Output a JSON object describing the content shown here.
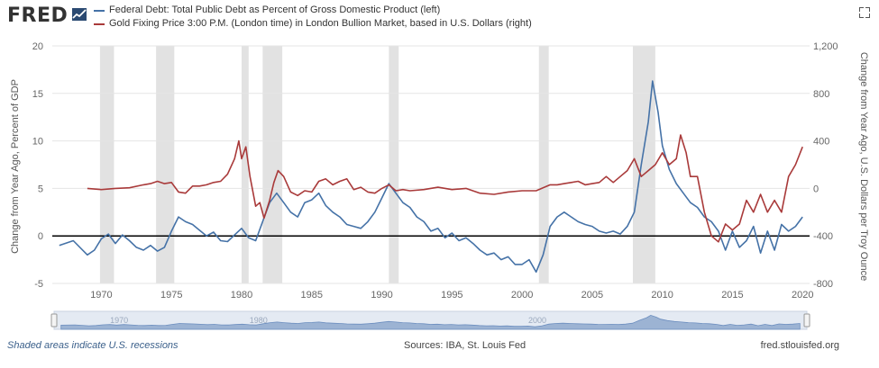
{
  "brand": {
    "logo_text": "FRED"
  },
  "chart_data": {
    "type": "line",
    "title": "",
    "xlabel": "",
    "ylabel_left": "Change from Year Ago, Percent of GDP",
    "ylabel_right": "Change from Year Ago, U.S. Dollars per Troy Ounce",
    "xlim": [
      1966.5,
      2020.5
    ],
    "ylim_left": [
      -5,
      20
    ],
    "ylim_right": [
      -800,
      1200
    ],
    "x_ticks": [
      "1970",
      "1975",
      "1980",
      "1985",
      "1990",
      "1995",
      "2000",
      "2005",
      "2010",
      "2015",
      "2020"
    ],
    "y_ticks_left": [
      "20",
      "15",
      "10",
      "5",
      "0",
      "-5"
    ],
    "y_ticks_right": [
      "1,200",
      "800",
      "400",
      "0",
      "-400",
      "-800"
    ],
    "grid": true,
    "zero_line": true,
    "legend_placement": "top-left",
    "recessions": [
      [
        1969.9,
        1970.9
      ],
      [
        1973.9,
        1975.2
      ],
      [
        1980.0,
        1980.5
      ],
      [
        1981.5,
        1982.9
      ],
      [
        1990.5,
        1991.2
      ],
      [
        2001.2,
        2001.9
      ],
      [
        2007.9,
        2009.5
      ]
    ],
    "series": [
      {
        "name": "Federal Debt: Total Public Debt as Percent of Gross Domestic Product (left)",
        "axis": "left",
        "color": "#4572a7",
        "x": [
          1967,
          1968,
          1969,
          1969.5,
          1970,
          1970.5,
          1971,
          1971.5,
          1972,
          1972.5,
          1973,
          1973.5,
          1974,
          1974.5,
          1975,
          1975.5,
          1976,
          1976.5,
          1977,
          1977.5,
          1978,
          1978.5,
          1979,
          1979.5,
          1980,
          1980.5,
          1981,
          1981.5,
          1982,
          1982.5,
          1983,
          1983.5,
          1984,
          1984.5,
          1985,
          1985.5,
          1986,
          1986.5,
          1987,
          1987.5,
          1988,
          1988.5,
          1989,
          1989.5,
          1990,
          1990.5,
          1991,
          1991.5,
          1992,
          1992.5,
          1993,
          1993.5,
          1994,
          1994.5,
          1995,
          1995.5,
          1996,
          1996.5,
          1997,
          1997.5,
          1998,
          1998.5,
          1999,
          1999.5,
          2000,
          2000.5,
          2001,
          2001.5,
          2002,
          2002.5,
          2003,
          2003.5,
          2004,
          2004.5,
          2005,
          2005.5,
          2006,
          2006.5,
          2007,
          2007.5,
          2008,
          2008.5,
          2009,
          2009.3,
          2009.7,
          2010,
          2010.5,
          2011,
          2011.5,
          2012,
          2012.5,
          2013,
          2013.5,
          2014,
          2014.5,
          2015,
          2015.5,
          2016,
          2016.5,
          2017,
          2017.5,
          2018,
          2018.5,
          2019,
          2019.5,
          2020
        ],
        "values": [
          -1,
          -0.5,
          -2,
          -1.5,
          -0.3,
          0.2,
          -0.8,
          0.1,
          -0.5,
          -1.2,
          -1.5,
          -1.0,
          -1.6,
          -1.2,
          0.5,
          2.0,
          1.5,
          1.2,
          0.6,
          0,
          0.4,
          -0.5,
          -0.6,
          0.1,
          0.8,
          -0.2,
          -0.5,
          1.5,
          3.5,
          4.5,
          3.5,
          2.5,
          2.0,
          3.5,
          3.8,
          4.5,
          3.2,
          2.5,
          2.0,
          1.2,
          1.0,
          0.8,
          1.5,
          2.5,
          4.0,
          5.5,
          4.5,
          3.5,
          3.0,
          2.0,
          1.5,
          0.5,
          0.8,
          -0.2,
          0.3,
          -0.5,
          -0.2,
          -0.8,
          -1.5,
          -2.0,
          -1.8,
          -2.5,
          -2.2,
          -3.0,
          -3.0,
          -2.5,
          -3.8,
          -2.0,
          1.0,
          2.0,
          2.5,
          2.0,
          1.5,
          1.2,
          1.0,
          0.5,
          0.3,
          0.5,
          0.2,
          1.0,
          2.5,
          7.5,
          12.0,
          16.3,
          13.0,
          9.5,
          7.0,
          5.5,
          4.5,
          3.5,
          3.0,
          2.0,
          1.5,
          0.5,
          -1.5,
          0.5,
          -1.2,
          -0.5,
          1.0,
          -1.8,
          0.5,
          -1.5,
          1.2,
          0.5,
          1.0,
          2.0
        ]
      },
      {
        "name": "Gold Fixing Price 3:00 P.M. (London time) in London Bullion Market, based in U.S. Dollars (right)",
        "axis": "right",
        "color": "#a93a3a",
        "x": [
          1969,
          1970,
          1971,
          1972,
          1973,
          1973.5,
          1974,
          1974.5,
          1975,
          1975.5,
          1976,
          1976.5,
          1977,
          1977.5,
          1978,
          1978.5,
          1979,
          1979.5,
          1979.8,
          1980,
          1980.3,
          1980.6,
          1981,
          1981.3,
          1981.6,
          1982,
          1982.3,
          1982.6,
          1983,
          1983.5,
          1984,
          1984.5,
          1985,
          1985.5,
          1986,
          1986.5,
          1987,
          1987.5,
          1988,
          1988.5,
          1989,
          1989.5,
          1990,
          1990.5,
          1991,
          1991.5,
          1992,
          1993,
          1994,
          1995,
          1996,
          1997,
          1998,
          1999,
          2000,
          2001,
          2002,
          2002.5,
          2003,
          2003.5,
          2004,
          2004.5,
          2005,
          2005.5,
          2006,
          2006.5,
          2007,
          2007.5,
          2008,
          2008.5,
          2009,
          2009.5,
          2010,
          2010.5,
          2011,
          2011.3,
          2011.7,
          2012,
          2012.5,
          2013,
          2013.5,
          2014,
          2014.5,
          2015,
          2015.5,
          2016,
          2016.5,
          2017,
          2017.5,
          2018,
          2018.5,
          2019,
          2019.5,
          2020
        ],
        "values": [
          0,
          -10,
          0,
          5,
          30,
          40,
          60,
          40,
          50,
          -30,
          -40,
          20,
          20,
          30,
          50,
          60,
          120,
          250,
          400,
          250,
          350,
          100,
          -150,
          -120,
          -250,
          -100,
          50,
          150,
          100,
          -30,
          -60,
          -20,
          -30,
          60,
          80,
          30,
          60,
          80,
          -10,
          10,
          -30,
          -40,
          0,
          30,
          -20,
          -10,
          -20,
          -10,
          10,
          -10,
          0,
          -40,
          -50,
          -30,
          -20,
          -20,
          30,
          30,
          40,
          50,
          60,
          30,
          40,
          50,
          100,
          50,
          100,
          150,
          250,
          100,
          150,
          200,
          300,
          200,
          250,
          450,
          300,
          100,
          100,
          -200,
          -400,
          -450,
          -300,
          -350,
          -300,
          -100,
          -200,
          -50,
          -200,
          -100,
          -200,
          100,
          200,
          350
        ]
      }
    ]
  },
  "footer": {
    "note": "Shaded areas indicate U.S. recessions",
    "source": "Sources: IBA, St. Louis Fed",
    "url": "fred.stlouisfed.org"
  },
  "navigator": {
    "labels": [
      "1970",
      "1980",
      "2000"
    ]
  },
  "colors": {
    "grid": "#e5e5e5",
    "recession": "#e2e2e2",
    "navigator_bg": "#e4eaf3",
    "navigator_fill": "#9cb3d3",
    "zero_line": "#000000"
  }
}
